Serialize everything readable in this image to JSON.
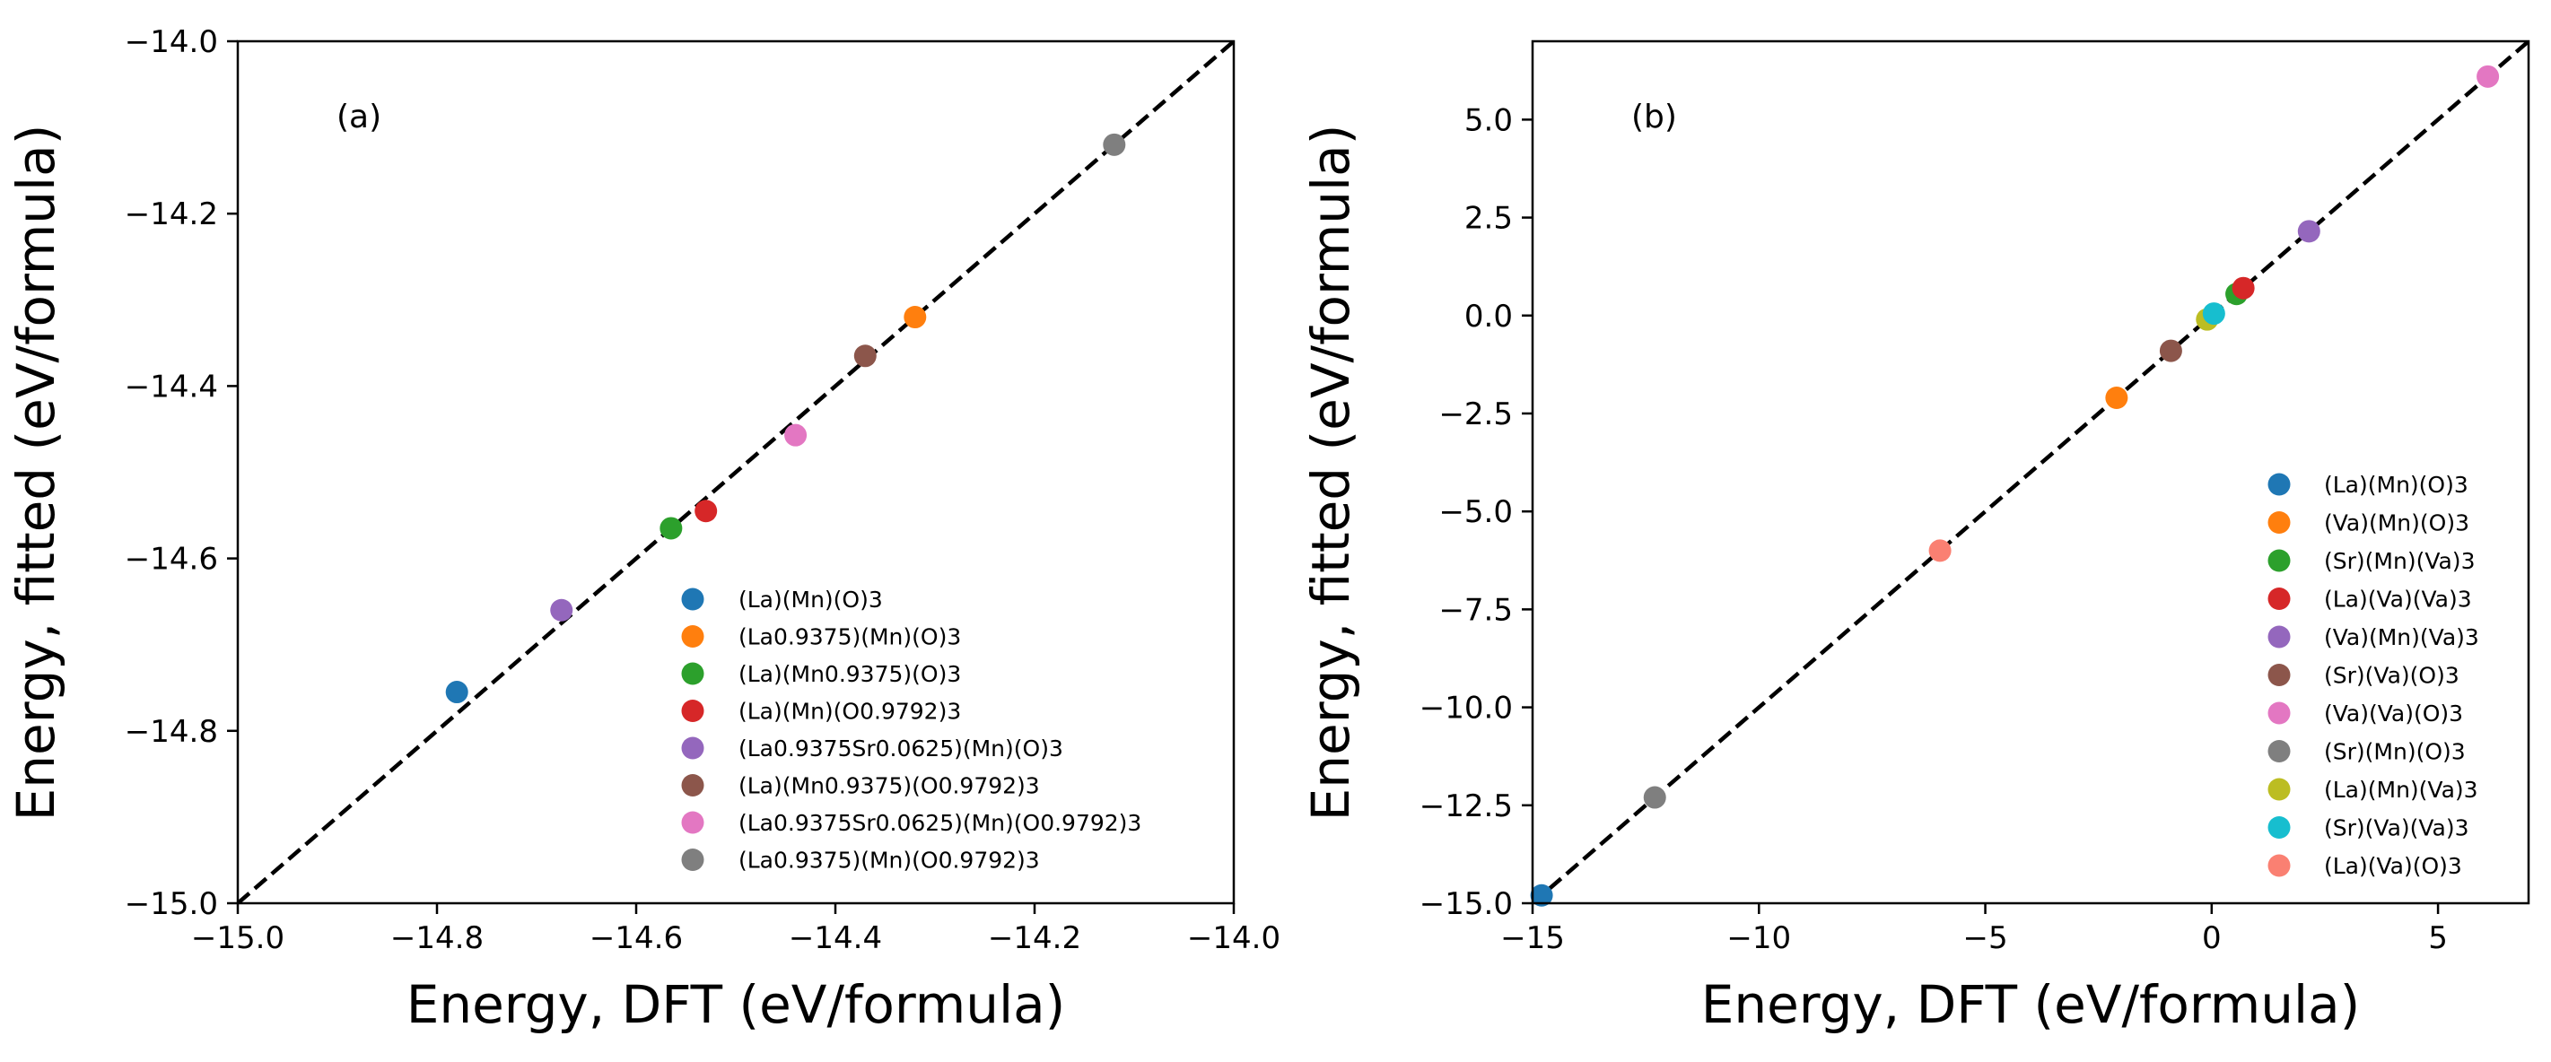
{
  "chart_data": [
    {
      "type": "scatter",
      "panel_label": "(a)",
      "xlabel": "Energy, DFT (eV/formula)",
      "ylabel": "Energy, fitted (eV/formula)",
      "xlim": [
        -15.0,
        -14.0
      ],
      "ylim": [
        -15.0,
        -14.0
      ],
      "xticks": [
        -15.0,
        -14.8,
        -14.6,
        -14.4,
        -14.2,
        -14.0
      ],
      "yticks": [
        -15.0,
        -14.8,
        -14.6,
        -14.4,
        -14.2,
        -14.0
      ],
      "xtick_labels": [
        "−15.0",
        "−14.8",
        "−14.6",
        "−14.4",
        "−14.2",
        "−14.0"
      ],
      "ytick_labels": [
        "−15.0",
        "−14.8",
        "−14.6",
        "−14.4",
        "−14.2",
        "−14.0"
      ],
      "reference_line": "y = x (dashed black)",
      "legend_position": "lower right",
      "series": [
        {
          "name": "(La)(Mn)(O)3",
          "color": "#1f77b4",
          "x": -14.78,
          "y": -14.755
        },
        {
          "name": "(La0.9375)(Mn)(O)3",
          "color": "#ff7f0e",
          "x": -14.32,
          "y": -14.32
        },
        {
          "name": "(La)(Mn0.9375)(O)3",
          "color": "#2ca02c",
          "x": -14.565,
          "y": -14.565
        },
        {
          "name": "(La)(Mn)(O0.9792)3",
          "color": "#d62728",
          "x": -14.53,
          "y": -14.545
        },
        {
          "name": "(La0.9375Sr0.0625)(Mn)(O)3",
          "color": "#9467bd",
          "x": -14.675,
          "y": -14.66
        },
        {
          "name": "(La)(Mn0.9375)(O0.9792)3",
          "color": "#8c564b",
          "x": -14.37,
          "y": -14.365
        },
        {
          "name": "(La0.9375Sr0.0625)(Mn)(O0.9792)3",
          "color": "#e377c2",
          "x": -14.44,
          "y": -14.457
        },
        {
          "name": "(La0.9375)(Mn)(O0.9792)3",
          "color": "#7f7f7f",
          "x": -14.12,
          "y": -14.12
        }
      ]
    },
    {
      "type": "scatter",
      "panel_label": "(b)",
      "xlabel": "Energy, DFT (eV/formula)",
      "ylabel": "Energy, fitted (eV/formula)",
      "xlim": [
        -15.0,
        7.0
      ],
      "ylim": [
        -15.0,
        7.0
      ],
      "xticks": [
        -15,
        -10,
        -5,
        0,
        5
      ],
      "yticks": [
        -15.0,
        -12.5,
        -10.0,
        -7.5,
        -5.0,
        -2.5,
        0.0,
        2.5,
        5.0
      ],
      "xtick_labels": [
        "−15",
        "−10",
        "−5",
        "0",
        "5"
      ],
      "ytick_labels": [
        "−15.0",
        "−12.5",
        "−10.0",
        "−7.5",
        "−5.0",
        "−2.5",
        "0.0",
        "2.5",
        "5.0"
      ],
      "reference_line": "y = x (dashed black)",
      "legend_position": "lower right",
      "series": [
        {
          "name": "(La)(Mn)(O)3",
          "color": "#1f77b4",
          "x": -14.8,
          "y": -14.8
        },
        {
          "name": "(Va)(Mn)(O)3",
          "color": "#ff7f0e",
          "x": -2.1,
          "y": -2.1
        },
        {
          "name": "(Sr)(Mn)(Va)3",
          "color": "#2ca02c",
          "x": 0.55,
          "y": 0.55
        },
        {
          "name": "(La)(Va)(Va)3",
          "color": "#d62728",
          "x": 0.7,
          "y": 0.7
        },
        {
          "name": "(Va)(Mn)(Va)3",
          "color": "#9467bd",
          "x": 2.15,
          "y": 2.15
        },
        {
          "name": "(Sr)(Va)(O)3",
          "color": "#8c564b",
          "x": -0.9,
          "y": -0.9
        },
        {
          "name": "(Va)(Va)(O)3",
          "color": "#e377c2",
          "x": 6.1,
          "y": 6.1
        },
        {
          "name": "(Sr)(Mn)(O)3",
          "color": "#7f7f7f",
          "x": -12.3,
          "y": -12.3
        },
        {
          "name": "(La)(Mn)(Va)3",
          "color": "#bcbd22",
          "x": -0.1,
          "y": -0.1
        },
        {
          "name": "(Sr)(Va)(Va)3",
          "color": "#17becf",
          "x": 0.05,
          "y": 0.05
        },
        {
          "name": "(La)(Va)(O)3",
          "color": "#fa8072",
          "x": -6.0,
          "y": -6.0
        }
      ]
    }
  ]
}
